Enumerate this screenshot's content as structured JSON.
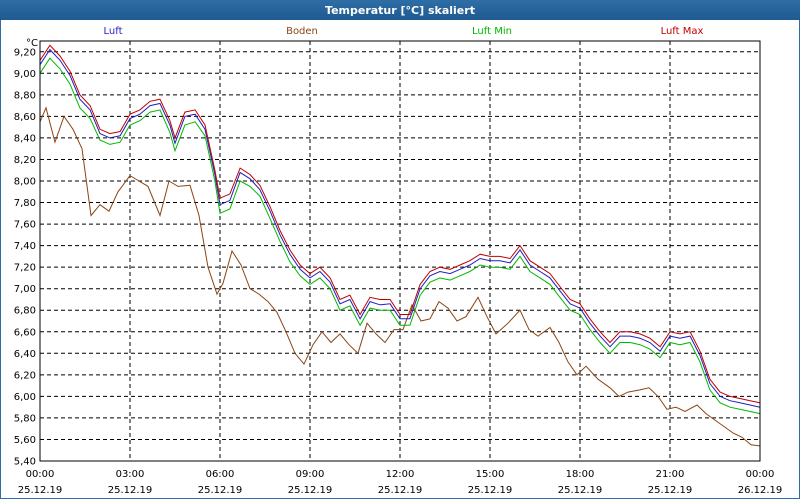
{
  "window": {
    "title": "Temperatur [°C] skaliert"
  },
  "chart_data": {
    "type": "line",
    "title": "Temperatur [°C] skaliert",
    "ylabel": "°C",
    "xlabel": "",
    "ylim": [
      5.4,
      9.3
    ],
    "xlim": [
      0,
      24
    ],
    "grid": true,
    "legend": "top",
    "y_ticks": [
      "5,40",
      "5,60",
      "5,80",
      "6,00",
      "6,20",
      "6,40",
      "6,60",
      "6,80",
      "7,00",
      "7,20",
      "7,40",
      "7,60",
      "7,80",
      "8,00",
      "8,20",
      "8,40",
      "8,60",
      "8,80",
      "9,00",
      "9,20"
    ],
    "x_ticks": [
      {
        "time": "00:00",
        "date": "25.12.19",
        "h": 0
      },
      {
        "time": "03:00",
        "date": "25.12.19",
        "h": 3
      },
      {
        "time": "06:00",
        "date": "25.12.19",
        "h": 6
      },
      {
        "time": "09:00",
        "date": "25.12.19",
        "h": 9
      },
      {
        "time": "12:00",
        "date": "25.12.19",
        "h": 12
      },
      {
        "time": "15:00",
        "date": "25.12.19",
        "h": 15
      },
      {
        "time": "18:00",
        "date": "25.12.19",
        "h": 18
      },
      {
        "time": "21:00",
        "date": "25.12.19",
        "h": 21
      },
      {
        "time": "00:00",
        "date": "26.12.19",
        "h": 24
      }
    ],
    "series": [
      {
        "name": "Luft",
        "color": "#1f1fc0",
        "points": [
          [
            0,
            9.08
          ],
          [
            0.33,
            9.22
          ],
          [
            0.67,
            9.12
          ],
          [
            1,
            8.98
          ],
          [
            1.33,
            8.76
          ],
          [
            1.67,
            8.66
          ],
          [
            2,
            8.44
          ],
          [
            2.33,
            8.4
          ],
          [
            2.67,
            8.42
          ],
          [
            3,
            8.58
          ],
          [
            3.33,
            8.62
          ],
          [
            3.67,
            8.7
          ],
          [
            4,
            8.72
          ],
          [
            4.33,
            8.52
          ],
          [
            4.5,
            8.35
          ],
          [
            4.83,
            8.6
          ],
          [
            5.17,
            8.62
          ],
          [
            5.5,
            8.48
          ],
          [
            5.83,
            8.06
          ],
          [
            6,
            7.78
          ],
          [
            6.33,
            7.82
          ],
          [
            6.67,
            8.08
          ],
          [
            7,
            8.02
          ],
          [
            7.33,
            7.92
          ],
          [
            7.67,
            7.72
          ],
          [
            8,
            7.5
          ],
          [
            8.33,
            7.32
          ],
          [
            8.67,
            7.18
          ],
          [
            9,
            7.1
          ],
          [
            9.33,
            7.16
          ],
          [
            9.67,
            7.06
          ],
          [
            10,
            6.86
          ],
          [
            10.33,
            6.9
          ],
          [
            10.67,
            6.72
          ],
          [
            11,
            6.88
          ],
          [
            11.33,
            6.85
          ],
          [
            11.67,
            6.86
          ],
          [
            12,
            6.72
          ],
          [
            12.33,
            6.72
          ],
          [
            12.67,
            7.0
          ],
          [
            13,
            7.12
          ],
          [
            13.33,
            7.16
          ],
          [
            13.67,
            7.14
          ],
          [
            14,
            7.18
          ],
          [
            14.33,
            7.22
          ],
          [
            14.67,
            7.28
          ],
          [
            15,
            7.26
          ],
          [
            15.33,
            7.26
          ],
          [
            15.67,
            7.24
          ],
          [
            16,
            7.36
          ],
          [
            16.33,
            7.22
          ],
          [
            16.67,
            7.16
          ],
          [
            17,
            7.1
          ],
          [
            17.33,
            6.98
          ],
          [
            17.67,
            6.86
          ],
          [
            18,
            6.82
          ],
          [
            18.33,
            6.68
          ],
          [
            18.67,
            6.56
          ],
          [
            19,
            6.46
          ],
          [
            19.33,
            6.56
          ],
          [
            19.67,
            6.56
          ],
          [
            20,
            6.54
          ],
          [
            20.33,
            6.5
          ],
          [
            20.67,
            6.42
          ],
          [
            21,
            6.56
          ],
          [
            21.33,
            6.54
          ],
          [
            21.67,
            6.56
          ],
          [
            22,
            6.38
          ],
          [
            22.33,
            6.12
          ],
          [
            22.67,
            6.0
          ],
          [
            23,
            5.96
          ],
          [
            23.33,
            5.94
          ],
          [
            23.67,
            5.92
          ],
          [
            24,
            5.9
          ]
        ]
      },
      {
        "name": "Boden",
        "color": "#8b4513",
        "points": [
          [
            0,
            8.55
          ],
          [
            0.2,
            8.68
          ],
          [
            0.5,
            8.36
          ],
          [
            0.8,
            8.6
          ],
          [
            1.1,
            8.48
          ],
          [
            1.4,
            8.3
          ],
          [
            1.7,
            7.68
          ],
          [
            2,
            7.78
          ],
          [
            2.3,
            7.72
          ],
          [
            2.6,
            7.9
          ],
          [
            3,
            8.05
          ],
          [
            3.3,
            8.0
          ],
          [
            3.6,
            7.95
          ],
          [
            4,
            7.68
          ],
          [
            4.3,
            8.0
          ],
          [
            4.6,
            7.95
          ],
          [
            5,
            7.96
          ],
          [
            5.3,
            7.68
          ],
          [
            5.6,
            7.2
          ],
          [
            5.9,
            6.95
          ],
          [
            6.1,
            7.05
          ],
          [
            6.4,
            7.35
          ],
          [
            6.7,
            7.22
          ],
          [
            7,
            7.0
          ],
          [
            7.3,
            6.95
          ],
          [
            7.6,
            6.88
          ],
          [
            7.9,
            6.78
          ],
          [
            8.2,
            6.6
          ],
          [
            8.5,
            6.4
          ],
          [
            8.8,
            6.3
          ],
          [
            9.1,
            6.48
          ],
          [
            9.4,
            6.6
          ],
          [
            9.7,
            6.5
          ],
          [
            10,
            6.58
          ],
          [
            10.3,
            6.48
          ],
          [
            10.6,
            6.4
          ],
          [
            10.9,
            6.68
          ],
          [
            11.2,
            6.58
          ],
          [
            11.5,
            6.5
          ],
          [
            11.8,
            6.62
          ],
          [
            12.1,
            6.62
          ],
          [
            12.4,
            6.85
          ],
          [
            12.7,
            6.7
          ],
          [
            13,
            6.72
          ],
          [
            13.3,
            6.88
          ],
          [
            13.6,
            6.82
          ],
          [
            13.9,
            6.7
          ],
          [
            14.2,
            6.74
          ],
          [
            14.6,
            6.92
          ],
          [
            14.9,
            6.74
          ],
          [
            15.2,
            6.58
          ],
          [
            15.6,
            6.68
          ],
          [
            16,
            6.8
          ],
          [
            16.3,
            6.62
          ],
          [
            16.6,
            6.56
          ],
          [
            17,
            6.64
          ],
          [
            17.3,
            6.5
          ],
          [
            17.6,
            6.32
          ],
          [
            17.9,
            6.2
          ],
          [
            18.2,
            6.28
          ],
          [
            18.6,
            6.16
          ],
          [
            19,
            6.08
          ],
          [
            19.3,
            6.0
          ],
          [
            19.6,
            6.04
          ],
          [
            20,
            6.06
          ],
          [
            20.3,
            6.08
          ],
          [
            20.6,
            6.0
          ],
          [
            20.9,
            5.88
          ],
          [
            21.2,
            5.9
          ],
          [
            21.5,
            5.86
          ],
          [
            21.9,
            5.92
          ],
          [
            22.2,
            5.84
          ],
          [
            22.5,
            5.78
          ],
          [
            22.8,
            5.72
          ],
          [
            23.1,
            5.66
          ],
          [
            23.4,
            5.62
          ],
          [
            23.7,
            5.55
          ],
          [
            24,
            5.54
          ]
        ]
      },
      {
        "name": "Luft Min",
        "color": "#00b800",
        "points": [
          [
            0,
            9.0
          ],
          [
            0.33,
            9.14
          ],
          [
            0.67,
            9.04
          ],
          [
            1,
            8.9
          ],
          [
            1.33,
            8.68
          ],
          [
            1.67,
            8.58
          ],
          [
            2,
            8.38
          ],
          [
            2.33,
            8.34
          ],
          [
            2.67,
            8.36
          ],
          [
            3,
            8.52
          ],
          [
            3.33,
            8.56
          ],
          [
            3.67,
            8.64
          ],
          [
            4,
            8.66
          ],
          [
            4.33,
            8.45
          ],
          [
            4.5,
            8.28
          ],
          [
            4.83,
            8.52
          ],
          [
            5.17,
            8.55
          ],
          [
            5.5,
            8.42
          ],
          [
            5.83,
            8.0
          ],
          [
            6,
            7.7
          ],
          [
            6.33,
            7.74
          ],
          [
            6.67,
            8.0
          ],
          [
            7,
            7.95
          ],
          [
            7.33,
            7.86
          ],
          [
            7.67,
            7.65
          ],
          [
            8,
            7.44
          ],
          [
            8.33,
            7.25
          ],
          [
            8.67,
            7.12
          ],
          [
            9,
            7.04
          ],
          [
            9.33,
            7.1
          ],
          [
            9.67,
            7.0
          ],
          [
            10,
            6.8
          ],
          [
            10.33,
            6.84
          ],
          [
            10.67,
            6.66
          ],
          [
            11,
            6.82
          ],
          [
            11.33,
            6.8
          ],
          [
            11.67,
            6.8
          ],
          [
            12,
            6.66
          ],
          [
            12.33,
            6.66
          ],
          [
            12.67,
            6.94
          ],
          [
            13,
            7.06
          ],
          [
            13.33,
            7.1
          ],
          [
            13.67,
            7.08
          ],
          [
            14,
            7.12
          ],
          [
            14.33,
            7.16
          ],
          [
            14.67,
            7.22
          ],
          [
            15,
            7.2
          ],
          [
            15.33,
            7.2
          ],
          [
            15.67,
            7.18
          ],
          [
            16,
            7.3
          ],
          [
            16.33,
            7.16
          ],
          [
            16.67,
            7.1
          ],
          [
            17,
            7.04
          ],
          [
            17.33,
            6.92
          ],
          [
            17.67,
            6.8
          ],
          [
            18,
            6.76
          ],
          [
            18.33,
            6.62
          ],
          [
            18.67,
            6.5
          ],
          [
            19,
            6.4
          ],
          [
            19.33,
            6.5
          ],
          [
            19.67,
            6.5
          ],
          [
            20,
            6.48
          ],
          [
            20.33,
            6.44
          ],
          [
            20.67,
            6.36
          ],
          [
            21,
            6.5
          ],
          [
            21.33,
            6.48
          ],
          [
            21.67,
            6.5
          ],
          [
            22,
            6.32
          ],
          [
            22.33,
            6.06
          ],
          [
            22.67,
            5.94
          ],
          [
            23,
            5.9
          ],
          [
            23.33,
            5.88
          ],
          [
            23.67,
            5.86
          ],
          [
            24,
            5.84
          ]
        ]
      },
      {
        "name": "Luft Max",
        "color": "#c00000",
        "points": [
          [
            0,
            9.12
          ],
          [
            0.33,
            9.26
          ],
          [
            0.67,
            9.16
          ],
          [
            1,
            9.02
          ],
          [
            1.33,
            8.8
          ],
          [
            1.67,
            8.7
          ],
          [
            2,
            8.48
          ],
          [
            2.33,
            8.44
          ],
          [
            2.67,
            8.46
          ],
          [
            3,
            8.62
          ],
          [
            3.33,
            8.66
          ],
          [
            3.67,
            8.74
          ],
          [
            4,
            8.76
          ],
          [
            4.33,
            8.56
          ],
          [
            4.5,
            8.4
          ],
          [
            4.83,
            8.64
          ],
          [
            5.17,
            8.66
          ],
          [
            5.5,
            8.52
          ],
          [
            5.83,
            8.1
          ],
          [
            6,
            7.84
          ],
          [
            6.33,
            7.88
          ],
          [
            6.67,
            8.12
          ],
          [
            7,
            8.06
          ],
          [
            7.33,
            7.96
          ],
          [
            7.67,
            7.76
          ],
          [
            8,
            7.54
          ],
          [
            8.33,
            7.36
          ],
          [
            8.67,
            7.22
          ],
          [
            9,
            7.14
          ],
          [
            9.33,
            7.2
          ],
          [
            9.67,
            7.1
          ],
          [
            10,
            6.9
          ],
          [
            10.33,
            6.94
          ],
          [
            10.67,
            6.76
          ],
          [
            11,
            6.92
          ],
          [
            11.33,
            6.9
          ],
          [
            11.67,
            6.9
          ],
          [
            12,
            6.76
          ],
          [
            12.33,
            6.76
          ],
          [
            12.67,
            7.04
          ],
          [
            13,
            7.16
          ],
          [
            13.33,
            7.2
          ],
          [
            13.67,
            7.18
          ],
          [
            14,
            7.22
          ],
          [
            14.33,
            7.26
          ],
          [
            14.67,
            7.32
          ],
          [
            15,
            7.3
          ],
          [
            15.33,
            7.3
          ],
          [
            15.67,
            7.28
          ],
          [
            16,
            7.4
          ],
          [
            16.33,
            7.26
          ],
          [
            16.67,
            7.2
          ],
          [
            17,
            7.14
          ],
          [
            17.33,
            7.02
          ],
          [
            17.67,
            6.9
          ],
          [
            18,
            6.86
          ],
          [
            18.33,
            6.72
          ],
          [
            18.67,
            6.6
          ],
          [
            19,
            6.5
          ],
          [
            19.33,
            6.6
          ],
          [
            19.67,
            6.6
          ],
          [
            20,
            6.58
          ],
          [
            20.33,
            6.54
          ],
          [
            20.67,
            6.46
          ],
          [
            21,
            6.6
          ],
          [
            21.33,
            6.58
          ],
          [
            21.67,
            6.6
          ],
          [
            22,
            6.42
          ],
          [
            22.33,
            6.16
          ],
          [
            22.67,
            6.04
          ],
          [
            23,
            6.0
          ],
          [
            23.33,
            5.98
          ],
          [
            23.67,
            5.96
          ],
          [
            24,
            5.94
          ]
        ]
      }
    ]
  }
}
